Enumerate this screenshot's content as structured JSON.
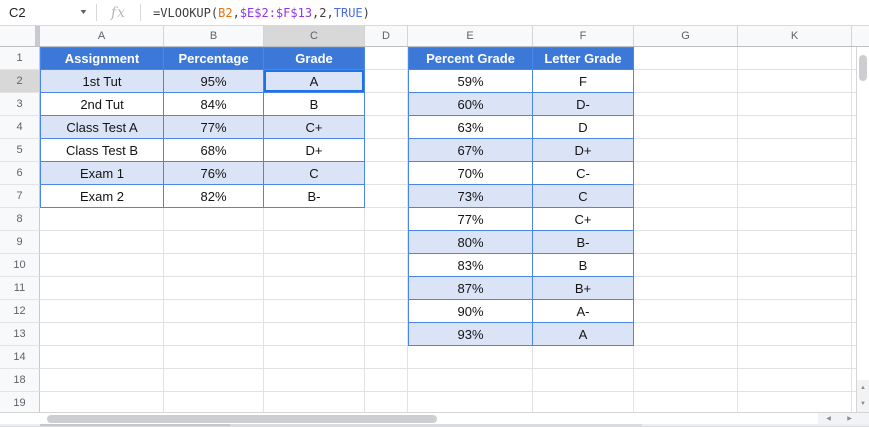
{
  "formula_bar": {
    "cell_reference": "C2",
    "fx_label": "fx",
    "formula": "=VLOOKUP(B2,$E$2:$F$13,2,TRUE)",
    "formula_parts": [
      {
        "text": "=VLOOKUP(",
        "color": "#3d3d3d"
      },
      {
        "text": "B2",
        "color": "#e8710a"
      },
      {
        "text": ",",
        "color": "#3d3d3d"
      },
      {
        "text": "$E$2:$F$13",
        "color": "#9334e6"
      },
      {
        "text": ",",
        "color": "#3d3d3d"
      },
      {
        "text": "2",
        "color": "#3d3d3d"
      },
      {
        "text": ",",
        "color": "#3d3d3d"
      },
      {
        "text": "TRUE",
        "color": "#4a6ee0"
      },
      {
        "text": ")",
        "color": "#3d3d3d"
      }
    ]
  },
  "grid": {
    "columns": [
      "A",
      "B",
      "C",
      "D",
      "E",
      "F",
      "G",
      "K"
    ],
    "rows": [
      "1",
      "2",
      "3",
      "4",
      "5",
      "6",
      "7",
      "8",
      "9",
      "10",
      "11",
      "12",
      "13",
      "14",
      "18",
      "19"
    ],
    "selection": {
      "cell": "C2",
      "column": "C",
      "row": "2"
    }
  },
  "grade_table": {
    "start_cell": "A1",
    "headers": [
      "Assignment",
      "Percentage",
      "Grade"
    ],
    "rows": [
      [
        "1st Tut",
        "95%",
        "A"
      ],
      [
        "2nd Tut",
        "84%",
        "B"
      ],
      [
        "Class Test A",
        "77%",
        "C+"
      ],
      [
        "Class Test B",
        "68%",
        "D+"
      ],
      [
        "Exam 1",
        "76%",
        "C"
      ],
      [
        "Exam 2",
        "82%",
        "B-"
      ]
    ]
  },
  "lookup_table": {
    "start_cell": "E1",
    "headers": [
      "Percent Grade",
      "Letter Grade"
    ],
    "rows": [
      [
        "59%",
        "F"
      ],
      [
        "60%",
        "D-"
      ],
      [
        "63%",
        "D"
      ],
      [
        "67%",
        "D+"
      ],
      [
        "70%",
        "C-"
      ],
      [
        "73%",
        "C"
      ],
      [
        "77%",
        "C+"
      ],
      [
        "80%",
        "B-"
      ],
      [
        "83%",
        "B"
      ],
      [
        "87%",
        "B+"
      ],
      [
        "90%",
        "A-"
      ],
      [
        "93%",
        "A"
      ]
    ]
  },
  "icons": {
    "dropdown": "▼",
    "scroll_up": "▲",
    "scroll_down": "▼",
    "scroll_left": "◀",
    "scroll_right": "▶"
  },
  "colors": {
    "table_header_bg": "#3c78d8",
    "table_header_text": "#ffffff",
    "band_bg": "#dbe3f6",
    "table_border": "#4a86e8",
    "selection_border": "#1a73e8",
    "gridline": "#e2e2e2",
    "selected_header_bg": "#d8d8d8"
  }
}
